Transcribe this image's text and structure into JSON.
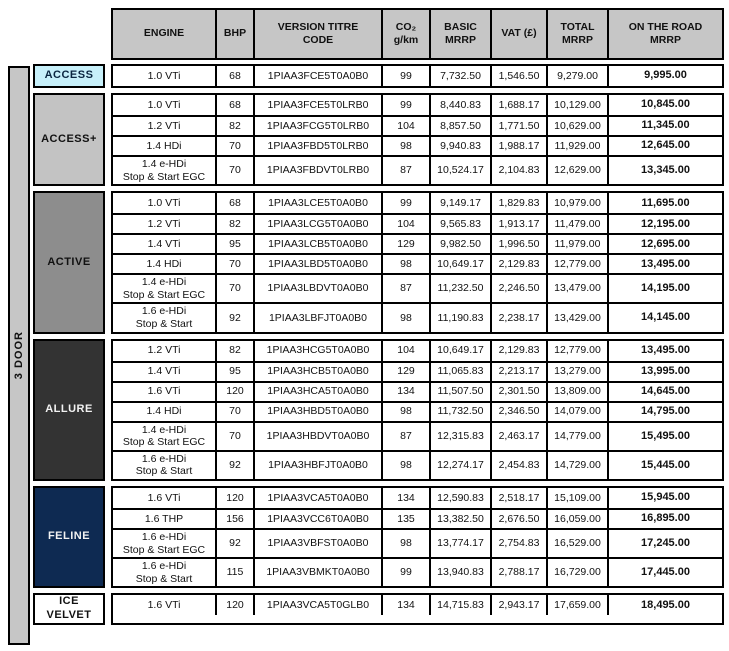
{
  "sidebar": {
    "label": "3 DOOR"
  },
  "colors": {
    "border": "#000000",
    "header_bg": "#c6c6c6",
    "sidebar_bg": "#c6c6c6"
  },
  "header": {
    "columns": [
      "ENGINE",
      "BHP",
      "VERSION TITRE\nCODE",
      "CO₂\ng/km",
      "BASIC\nMRRP",
      "VAT (£)",
      "TOTAL\nMRRP",
      "ON THE ROAD\nMRRP"
    ]
  },
  "groups": [
    {
      "trim": "ACCESS",
      "slug": "access",
      "label_bg": "#c7f0fa",
      "label_fg": "#0a2540",
      "rows": [
        {
          "engine": "1.0 VTi",
          "bhp": "68",
          "code": "1PIAA3FCE5T0A0B0",
          "co2": "99",
          "basic": "7,732.50",
          "vat": "1,546.50",
          "total": "9,279.00",
          "otr": "9,995.00"
        }
      ]
    },
    {
      "trim": "ACCESS+",
      "slug": "access-plus",
      "label_bg": "#c3c3c3",
      "label_fg": "#111111",
      "rows": [
        {
          "engine": "1.0 VTi",
          "bhp": "68",
          "code": "1PIAA3FCE5T0LRB0",
          "co2": "99",
          "basic": "8,440.83",
          "vat": "1,688.17",
          "total": "10,129.00",
          "otr": "10,845.00"
        },
        {
          "engine": "1.2 VTi",
          "bhp": "82",
          "code": "1PIAA3FCG5T0LRB0",
          "co2": "104",
          "basic": "8,857.50",
          "vat": "1,771.50",
          "total": "10,629.00",
          "otr": "11,345.00"
        },
        {
          "engine": "1.4 HDi",
          "bhp": "70",
          "code": "1PIAA3FBD5T0LRB0",
          "co2": "98",
          "basic": "9,940.83",
          "vat": "1,988.17",
          "total": "11,929.00",
          "otr": "12,645.00"
        },
        {
          "engine": "1.4 e-HDi\nStop & Start EGC",
          "bhp": "70",
          "code": "1PIAA3FBDVT0LRB0",
          "co2": "87",
          "basic": "10,524.17",
          "vat": "2,104.83",
          "total": "12,629.00",
          "otr": "13,345.00"
        }
      ]
    },
    {
      "trim": "ACTIVE",
      "slug": "active",
      "label_bg": "#8d8d8d",
      "label_fg": "#111111",
      "rows": [
        {
          "engine": "1.0 VTi",
          "bhp": "68",
          "code": "1PIAA3LCE5T0A0B0",
          "co2": "99",
          "basic": "9,149.17",
          "vat": "1,829.83",
          "total": "10,979.00",
          "otr": "11,695.00"
        },
        {
          "engine": "1.2 VTi",
          "bhp": "82",
          "code": "1PIAA3LCG5T0A0B0",
          "co2": "104",
          "basic": "9,565.83",
          "vat": "1,913.17",
          "total": "11,479.00",
          "otr": "12,195.00"
        },
        {
          "engine": "1.4 VTi",
          "bhp": "95",
          "code": "1PIAA3LCB5T0A0B0",
          "co2": "129",
          "basic": "9,982.50",
          "vat": "1,996.50",
          "total": "11,979.00",
          "otr": "12,695.00"
        },
        {
          "engine": "1.4 HDi",
          "bhp": "70",
          "code": "1PIAA3LBD5T0A0B0",
          "co2": "98",
          "basic": "10,649.17",
          "vat": "2,129.83",
          "total": "12,779.00",
          "otr": "13,495.00"
        },
        {
          "engine": "1.4 e-HDi\nStop & Start EGC",
          "bhp": "70",
          "code": "1PIAA3LBDVT0A0B0",
          "co2": "87",
          "basic": "11,232.50",
          "vat": "2,246.50",
          "total": "13,479.00",
          "otr": "14,195.00"
        },
        {
          "engine": "1.6 e-HDi\nStop & Start",
          "bhp": "92",
          "code": "1PIAA3LBFJT0A0B0",
          "co2": "98",
          "basic": "11,190.83",
          "vat": "2,238.17",
          "total": "13,429.00",
          "otr": "14,145.00"
        }
      ]
    },
    {
      "trim": "ALLURE",
      "slug": "allure",
      "label_bg": "#333333",
      "label_fg": "#f2f2f2",
      "rows": [
        {
          "engine": "1.2 VTi",
          "bhp": "82",
          "code": "1PIAA3HCG5T0A0B0",
          "co2": "104",
          "basic": "10,649.17",
          "vat": "2,129.83",
          "total": "12,779.00",
          "otr": "13,495.00"
        },
        {
          "engine": "1.4 VTi",
          "bhp": "95",
          "code": "1PIAA3HCB5T0A0B0",
          "co2": "129",
          "basic": "11,065.83",
          "vat": "2,213.17",
          "total": "13,279.00",
          "otr": "13,995.00"
        },
        {
          "engine": "1.6 VTi",
          "bhp": "120",
          "code": "1PIAA3HCA5T0A0B0",
          "co2": "134",
          "basic": "11,507.50",
          "vat": "2,301.50",
          "total": "13,809.00",
          "otr": "14,645.00"
        },
        {
          "engine": "1.4 HDi",
          "bhp": "70",
          "code": "1PIAA3HBD5T0A0B0",
          "co2": "98",
          "basic": "11,732.50",
          "vat": "2,346.50",
          "total": "14,079.00",
          "otr": "14,795.00"
        },
        {
          "engine": "1.4 e-HDi\nStop & Start EGC",
          "bhp": "70",
          "code": "1PIAA3HBDVT0A0B0",
          "co2": "87",
          "basic": "12,315.83",
          "vat": "2,463.17",
          "total": "14,779.00",
          "otr": "15,495.00"
        },
        {
          "engine": "1.6 e-HDi\nStop & Start",
          "bhp": "92",
          "code": "1PIAA3HBFJT0A0B0",
          "co2": "98",
          "basic": "12,274.17",
          "vat": "2,454.83",
          "total": "14,729.00",
          "otr": "15,445.00"
        }
      ]
    },
    {
      "trim": "FELINE",
      "slug": "feline",
      "label_bg": "#0e2a52",
      "label_fg": "#f2f2f2",
      "rows": [
        {
          "engine": "1.6 VTi",
          "bhp": "120",
          "code": "1PIAA3VCA5T0A0B0",
          "co2": "134",
          "basic": "12,590.83",
          "vat": "2,518.17",
          "total": "15,109.00",
          "otr": "15,945.00"
        },
        {
          "engine": "1.6 THP",
          "bhp": "156",
          "code": "1PIAA3VCC6T0A0B0",
          "co2": "135",
          "basic": "13,382.50",
          "vat": "2,676.50",
          "total": "16,059.00",
          "otr": "16,895.00"
        },
        {
          "engine": "1.6 e-HDi\nStop & Start EGC",
          "bhp": "92",
          "code": "1PIAA3VBFST0A0B0",
          "co2": "98",
          "basic": "13,774.17",
          "vat": "2,754.83",
          "total": "16,529.00",
          "otr": "17,245.00"
        },
        {
          "engine": "1.6 e-HDi\nStop & Start",
          "bhp": "115",
          "code": "1PIAA3VBMKT0A0B0",
          "co2": "99",
          "basic": "13,940.83",
          "vat": "2,788.17",
          "total": "16,729.00",
          "otr": "17,445.00"
        }
      ]
    },
    {
      "trim": "ICE\nVELVET",
      "slug": "ice-velvet",
      "label_bg": "#ffffff",
      "label_fg": "#111111",
      "rows": [
        {
          "engine": "1.6 VTi",
          "bhp": "120",
          "code": "1PIAA3VCA5T0GLB0",
          "co2": "134",
          "basic": "14,715.83",
          "vat": "2,943.17",
          "total": "17,659.00",
          "otr": "18,495.00"
        }
      ]
    }
  ]
}
